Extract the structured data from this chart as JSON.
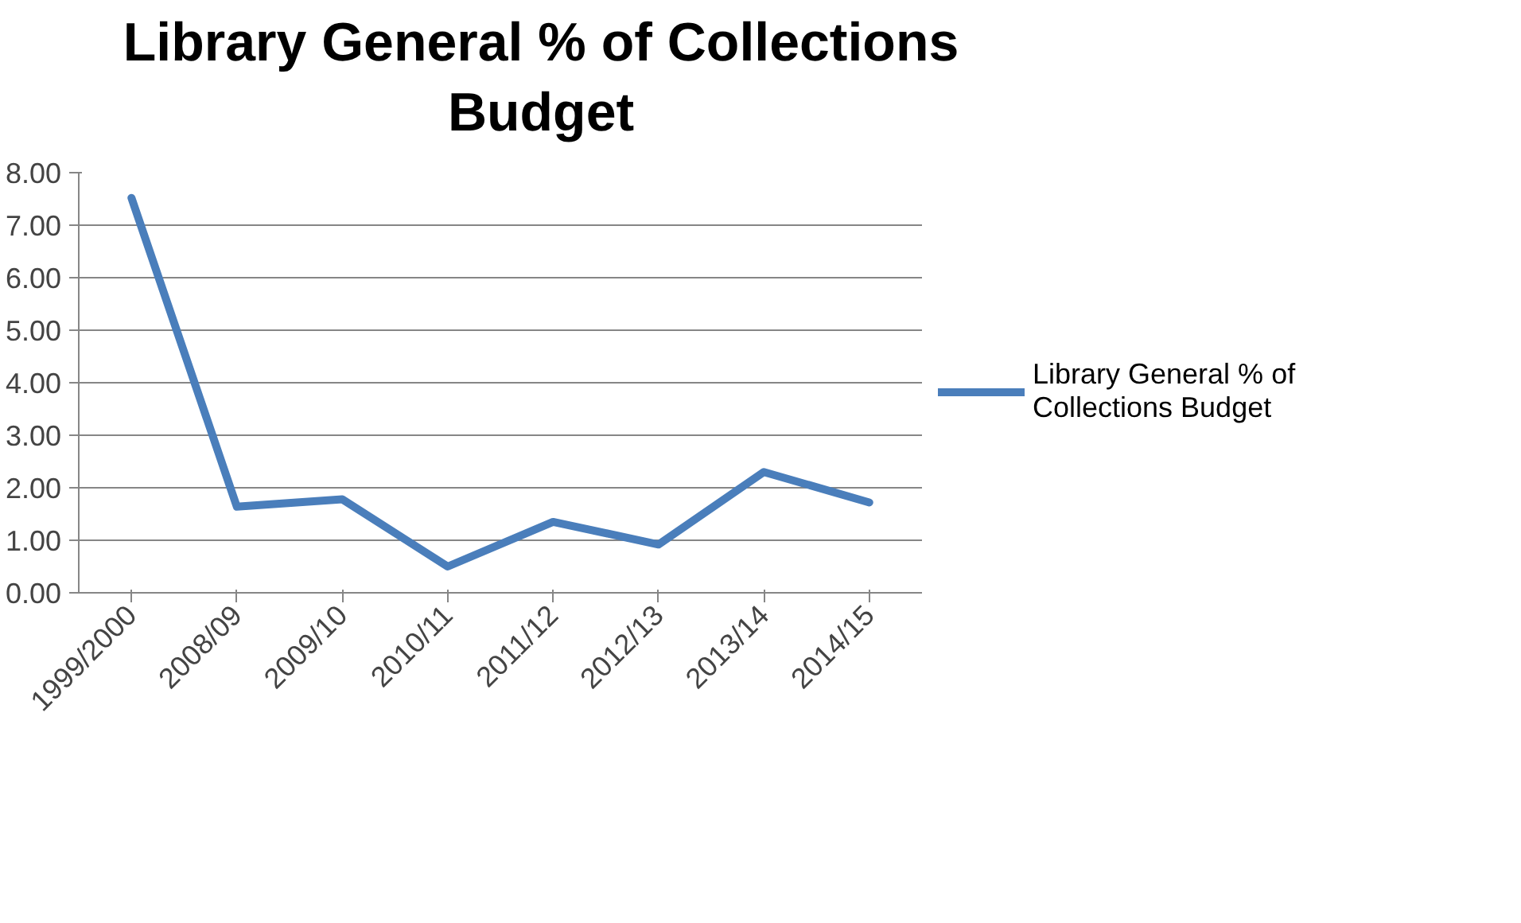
{
  "chart_data": {
    "type": "line",
    "title": "Library General % of Collections Budget",
    "categories": [
      "1999/2000",
      "2008/09",
      "2009/10",
      "2010/11",
      "2011/12",
      "2012/13",
      "2013/14",
      "2014/15"
    ],
    "series": [
      {
        "name": "Library General % of Collections Budget",
        "color": "#4a7ebb",
        "values": [
          7.52,
          1.64,
          1.78,
          0.5,
          1.35,
          0.92,
          2.3,
          1.72
        ]
      }
    ],
    "ylim": [
      0,
      8
    ],
    "yticks": [
      {
        "value": 0,
        "label": "0.00"
      },
      {
        "value": 1,
        "label": "1.00"
      },
      {
        "value": 2,
        "label": "2.00"
      },
      {
        "value": 3,
        "label": "3.00"
      },
      {
        "value": 4,
        "label": "4.00"
      },
      {
        "value": 5,
        "label": "5.00"
      },
      {
        "value": 6,
        "label": "6.00"
      },
      {
        "value": 7,
        "label": "7.00"
      },
      {
        "value": 8,
        "label": "8.00"
      }
    ],
    "grid": "y",
    "legend": "right",
    "marker": "none",
    "line_style": "solid"
  }
}
